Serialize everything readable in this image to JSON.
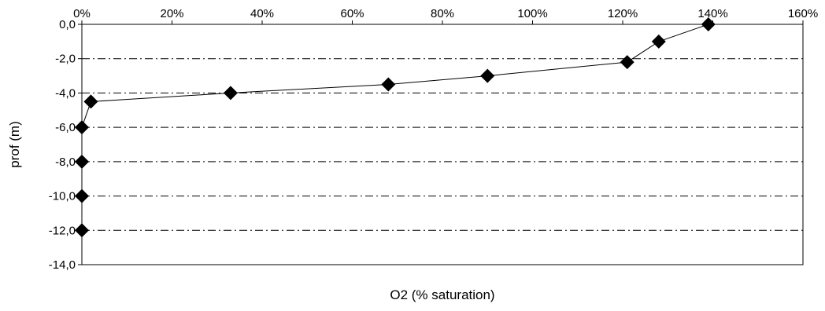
{
  "chart_data": {
    "type": "line",
    "title": "",
    "xlabel": "O2 (% saturation)",
    "ylabel": "prof (m)",
    "x_axis_position": "top",
    "x_ticks": [
      "0%",
      "20%",
      "40%",
      "60%",
      "80%",
      "100%",
      "120%",
      "140%",
      "160%"
    ],
    "y_ticks": [
      "0,0",
      "-2,0",
      "-4,0",
      "-6,0",
      "-8,0",
      "-10,0",
      "-12,0",
      "-14,0"
    ],
    "xlim": [
      0,
      160
    ],
    "ylim": [
      -14,
      0
    ],
    "grid": "horizontal dash-dot",
    "legend": "none",
    "marker": "diamond",
    "series": [
      {
        "x": [
          139,
          128,
          121,
          90,
          68,
          33,
          2,
          0,
          0,
          0,
          0
        ],
        "y": [
          0,
          -1,
          -2.2,
          -3,
          -3.5,
          -4,
          -4.5,
          -6,
          -8,
          -10,
          -12
        ]
      }
    ],
    "colors": {
      "line": "#000000",
      "marker": "#000000",
      "grid": "#000000",
      "background": "#ffffff"
    }
  }
}
